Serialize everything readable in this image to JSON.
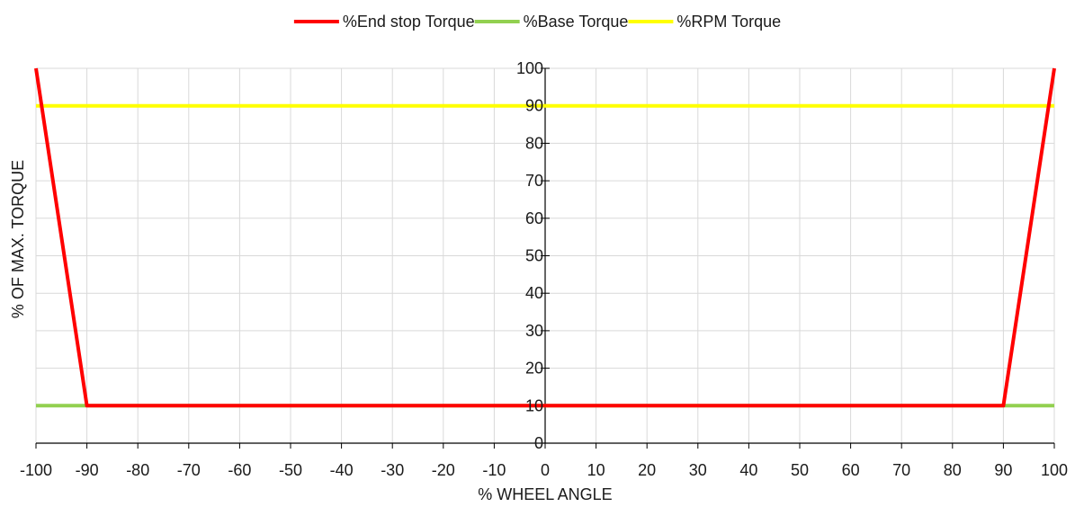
{
  "chart_data": {
    "type": "line",
    "title": "",
    "xlabel": "% WHEEL ANGLE",
    "ylabel": "% OF MAX. TORQUE",
    "xlim": [
      -100,
      100
    ],
    "ylim": [
      0,
      100
    ],
    "x_ticks": [
      -100,
      -90,
      -80,
      -70,
      -60,
      -50,
      -40,
      -30,
      -20,
      -10,
      0,
      10,
      20,
      30,
      40,
      50,
      60,
      70,
      80,
      90,
      100
    ],
    "y_ticks": [
      0,
      10,
      20,
      30,
      40,
      50,
      60,
      70,
      80,
      90,
      100
    ],
    "grid": true,
    "legend_position": "top",
    "series": [
      {
        "name": "%End stop Torque",
        "color": "#ff0000",
        "points": [
          [
            -100,
            100
          ],
          [
            -90,
            10
          ],
          [
            90,
            10
          ],
          [
            100,
            100
          ]
        ]
      },
      {
        "name": "%Base Torque",
        "color": "#92d050",
        "points": [
          [
            -100,
            10
          ],
          [
            100,
            10
          ]
        ]
      },
      {
        "name": "%RPM Torque",
        "color": "#ffff00",
        "points": [
          [
            -100,
            90
          ],
          [
            100,
            90
          ]
        ]
      }
    ]
  }
}
